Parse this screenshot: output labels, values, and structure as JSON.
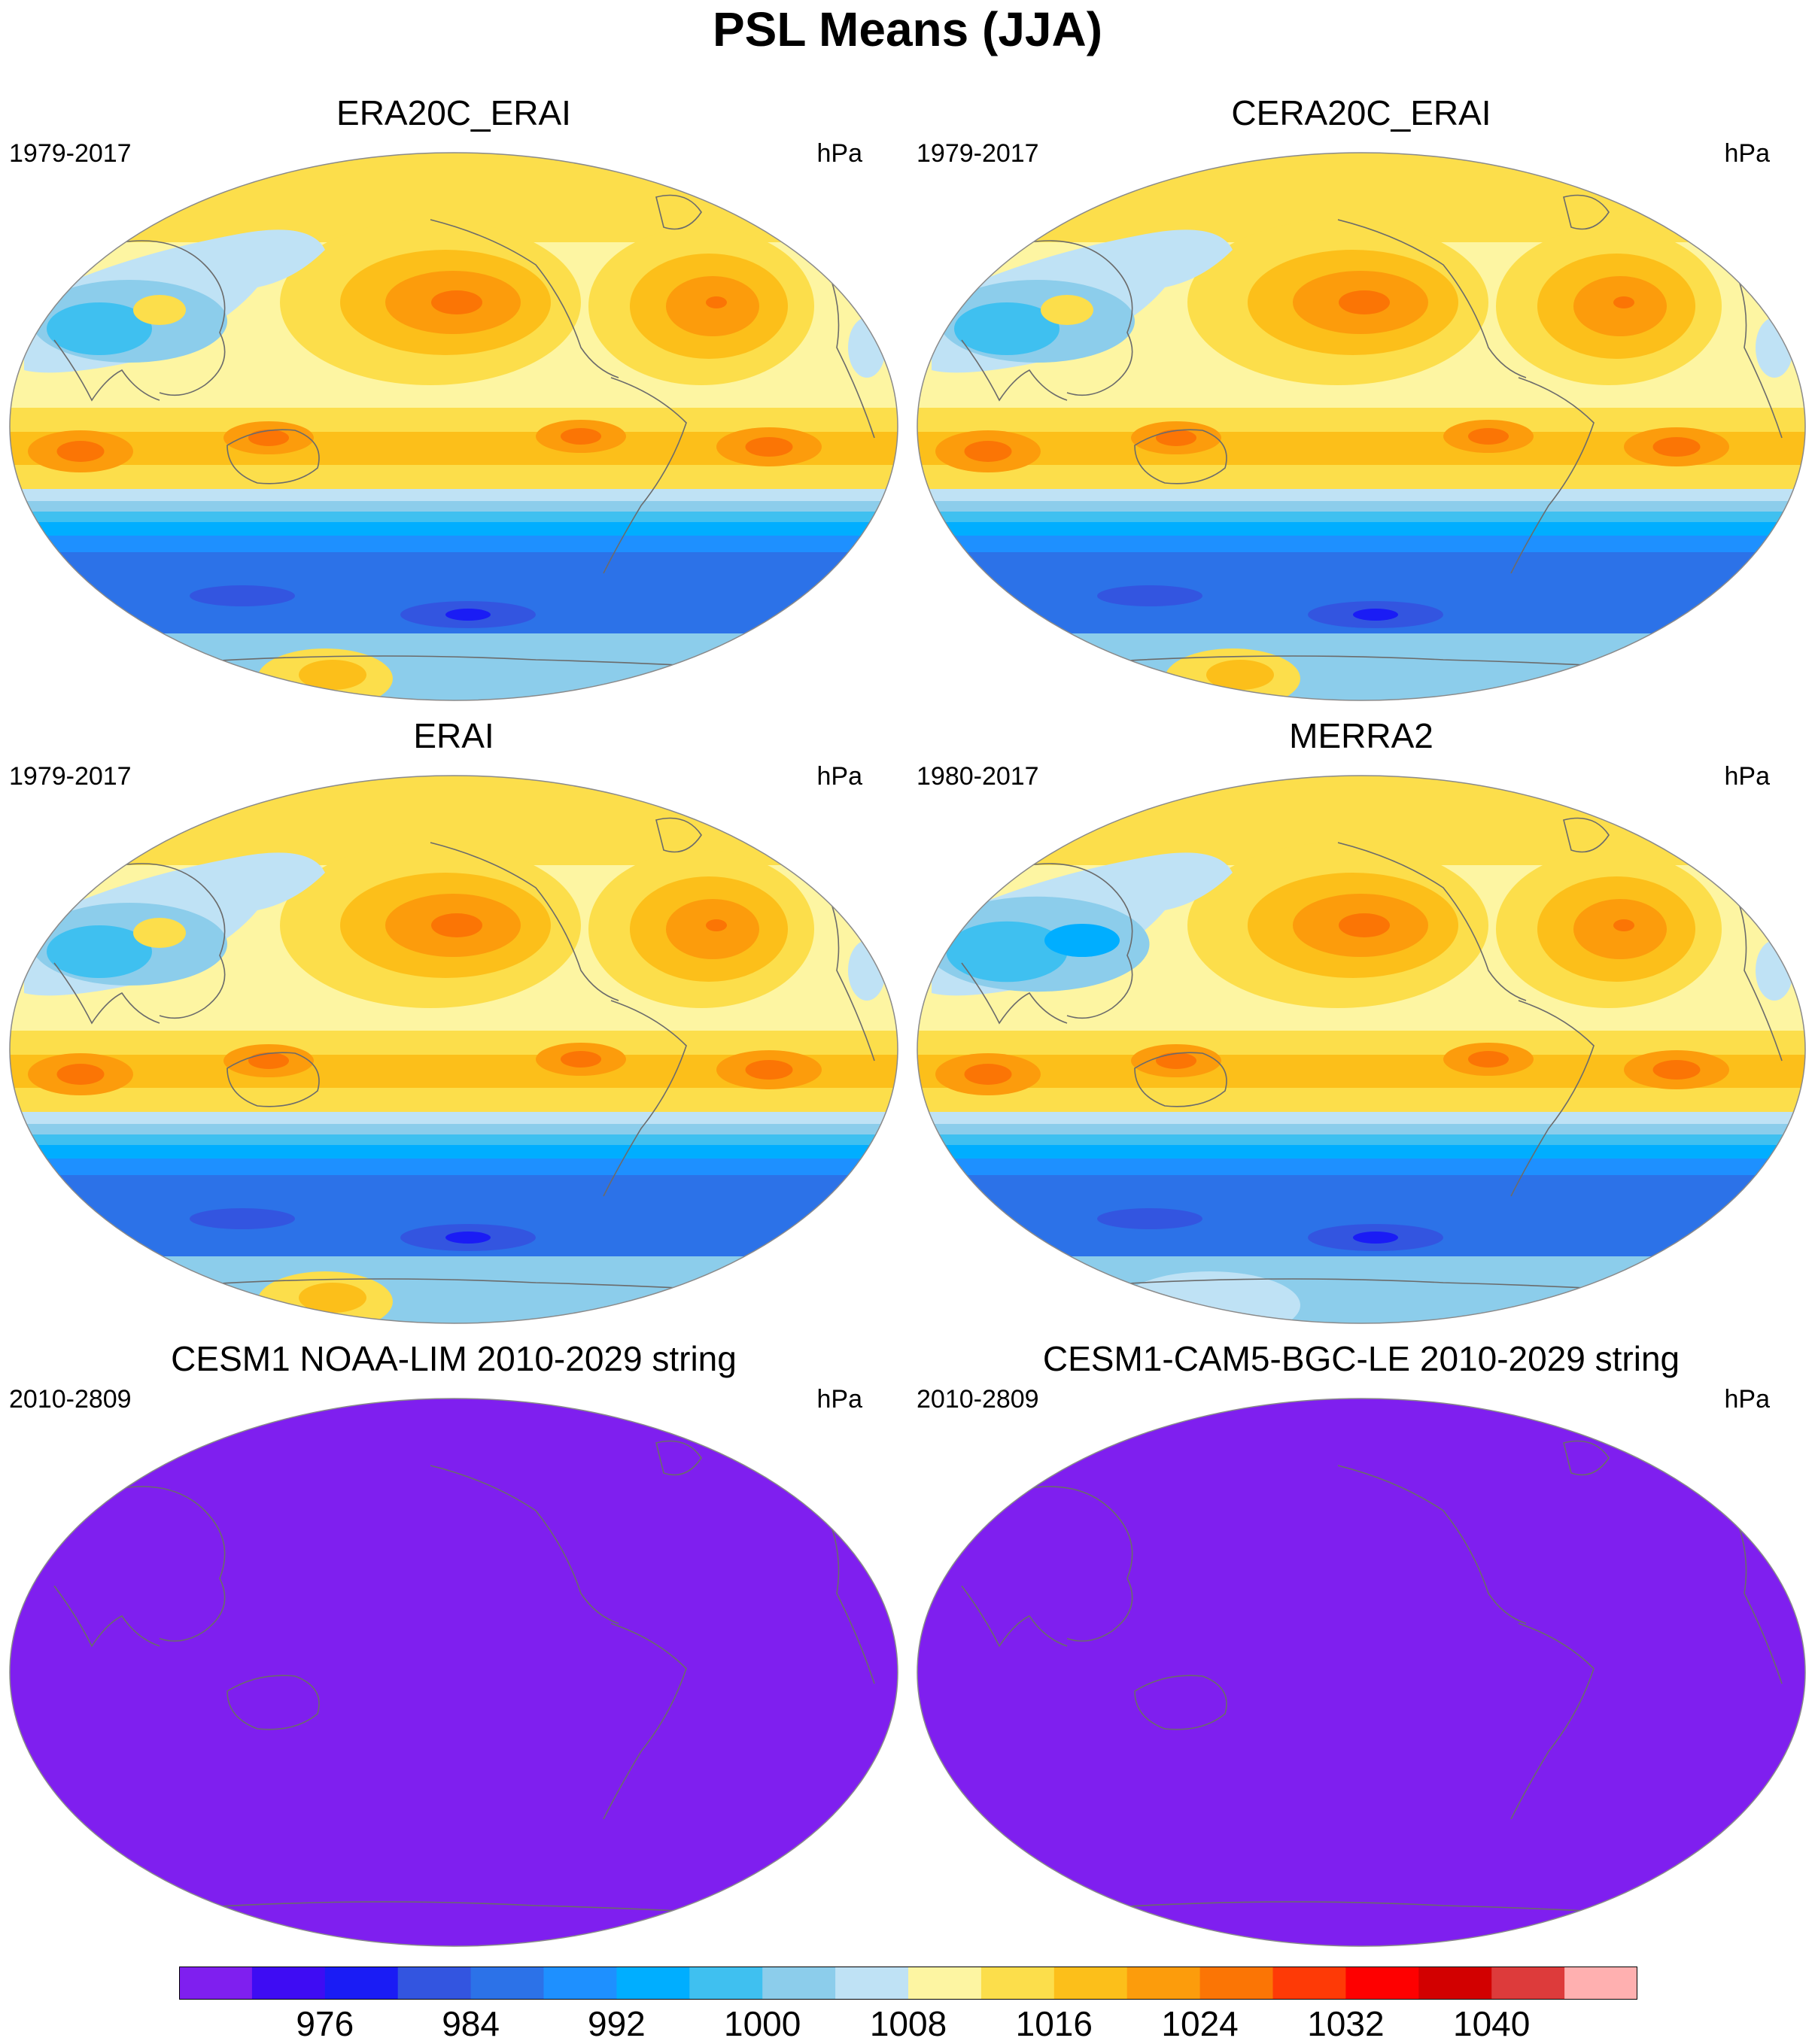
{
  "title": "PSL Means (JJA)",
  "panels": [
    {
      "title": "ERA20C_ERAI",
      "years": "1979-2017",
      "units": "hPa",
      "variant": "era20c"
    },
    {
      "title": "CERA20C_ERAI",
      "years": "1979-2017",
      "units": "hPa",
      "variant": "cera20c"
    },
    {
      "title": "ERAI",
      "years": "1979-2017",
      "units": "hPa",
      "variant": "erai"
    },
    {
      "title": "MERRA2",
      "years": "1980-2017",
      "units": "hPa",
      "variant": "merra2"
    },
    {
      "title": "CESM1 NOAA-LIM 2010-2029 string",
      "years": "2010-2809",
      "units": "hPa",
      "variant": "uniform"
    },
    {
      "title": "CESM1-CAM5-BGC-LE 2010-2029 string",
      "years": "2010-2809",
      "units": "hPa",
      "variant": "uniform"
    }
  ],
  "colorbar": {
    "labels": [
      "976",
      "984",
      "992",
      "1000",
      "1008",
      "1016",
      "1024",
      "1032",
      "1040"
    ],
    "colors": [
      "#7f1fef",
      "#3e0cf3",
      "#1a1cf5",
      "#3355e0",
      "#2c72e8",
      "#1e90ff",
      "#00aeff",
      "#3fc0f0",
      "#8ccdeb",
      "#bfe2f5",
      "#fdf5a2",
      "#fcde4b",
      "#fcbf1a",
      "#fc9c0c",
      "#fb7505",
      "#fe3a06",
      "#fe0000",
      "#d20000",
      "#dd3b3b",
      "#ffb0b0"
    ]
  },
  "chart_data": {
    "type": "heatmap",
    "title": "PSL Means (JJA)",
    "projection": "Robinson (Pacific-centered)",
    "units": "hPa",
    "contour_levels": [
      976,
      980,
      984,
      988,
      992,
      996,
      1000,
      1004,
      1008,
      1012,
      1016,
      1020,
      1024,
      1028,
      1032,
      1036,
      1040
    ],
    "panels": [
      {
        "title": "ERA20C_ERAI",
        "period": "1979-2017",
        "uniform_value": null
      },
      {
        "title": "CERA20C_ERAI",
        "period": "1979-2017",
        "uniform_value": null
      },
      {
        "title": "ERAI",
        "period": "1979-2017",
        "uniform_value": null
      },
      {
        "title": "MERRA2",
        "period": "1980-2017",
        "uniform_value": null
      },
      {
        "title": "CESM1 NOAA-LIM 2010-2029 string",
        "period": "2010-2809",
        "uniform_value": "below 976"
      },
      {
        "title": "CESM1-CAM5-BGC-LE 2010-2029 string",
        "period": "2010-2809",
        "uniform_value": "below 976"
      }
    ]
  }
}
